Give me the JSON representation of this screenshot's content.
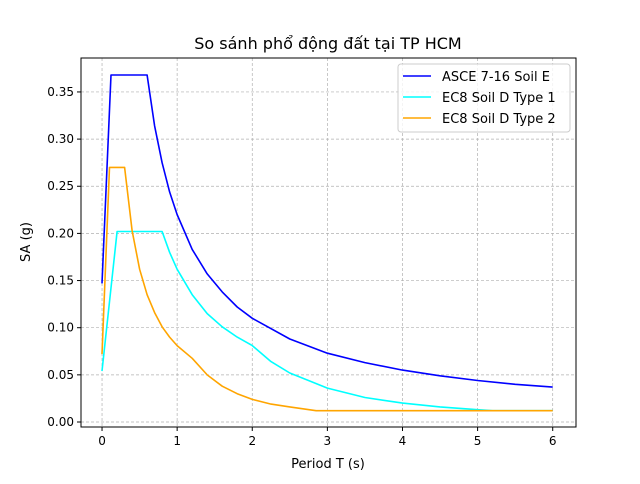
{
  "chart_data": {
    "type": "line",
    "title": "So sánh phổ động đất tại TP HCM",
    "xlabel": "Period T (s)",
    "ylabel": "SA (g)",
    "xlim": [
      -0.28,
      6.31
    ],
    "ylim": [
      -0.0053,
      0.386
    ],
    "xticks": [
      0,
      1,
      2,
      3,
      4,
      5,
      6
    ],
    "xtick_labels": [
      "0",
      "1",
      "2",
      "3",
      "4",
      "5",
      "6"
    ],
    "yticks": [
      0,
      0.05,
      0.1,
      0.15,
      0.2,
      0.25,
      0.3,
      0.35
    ],
    "ytick_labels": [
      "0.00",
      "0.05",
      "0.10",
      "0.15",
      "0.20",
      "0.25",
      "0.30",
      "0.35"
    ],
    "grid": true,
    "legend_position": "top-right",
    "series": [
      {
        "name": "ASCE 7-16 Soil E",
        "color": "#0000ff",
        "x": [
          0,
          0.12,
          0.6,
          0.7,
          0.8,
          0.9,
          1.0,
          1.2,
          1.4,
          1.6,
          1.8,
          2.0,
          2.5,
          3.0,
          3.5,
          4.0,
          4.5,
          5.0,
          5.5,
          6.0
        ],
        "y": [
          0.147,
          0.368,
          0.368,
          0.314,
          0.275,
          0.244,
          0.22,
          0.183,
          0.157,
          0.138,
          0.122,
          0.11,
          0.088,
          0.073,
          0.063,
          0.055,
          0.049,
          0.044,
          0.04,
          0.037
        ]
      },
      {
        "name": "EC8 Soil D Type 1",
        "color": "#00ffff",
        "x": [
          0,
          0.2,
          0.8,
          0.9,
          1.0,
          1.2,
          1.4,
          1.6,
          1.8,
          2.0,
          2.25,
          2.5,
          3.0,
          3.5,
          4.0,
          4.5,
          5.0,
          5.2,
          6.0
        ],
        "y": [
          0.054,
          0.202,
          0.202,
          0.18,
          0.162,
          0.135,
          0.115,
          0.101,
          0.09,
          0.081,
          0.064,
          0.052,
          0.036,
          0.026,
          0.02,
          0.016,
          0.013,
          0.012,
          0.012
        ]
      },
      {
        "name": "EC8 Soil D Type 2",
        "color": "#ffa500",
        "x": [
          0,
          0.1,
          0.3,
          0.4,
          0.5,
          0.6,
          0.7,
          0.8,
          0.9,
          1.0,
          1.2,
          1.4,
          1.6,
          1.8,
          2.0,
          2.25,
          2.5,
          2.85,
          6.0
        ],
        "y": [
          0.072,
          0.27,
          0.27,
          0.203,
          0.162,
          0.135,
          0.116,
          0.101,
          0.09,
          0.081,
          0.0675,
          0.05,
          0.038,
          0.03,
          0.024,
          0.019,
          0.016,
          0.012,
          0.012
        ]
      }
    ]
  }
}
